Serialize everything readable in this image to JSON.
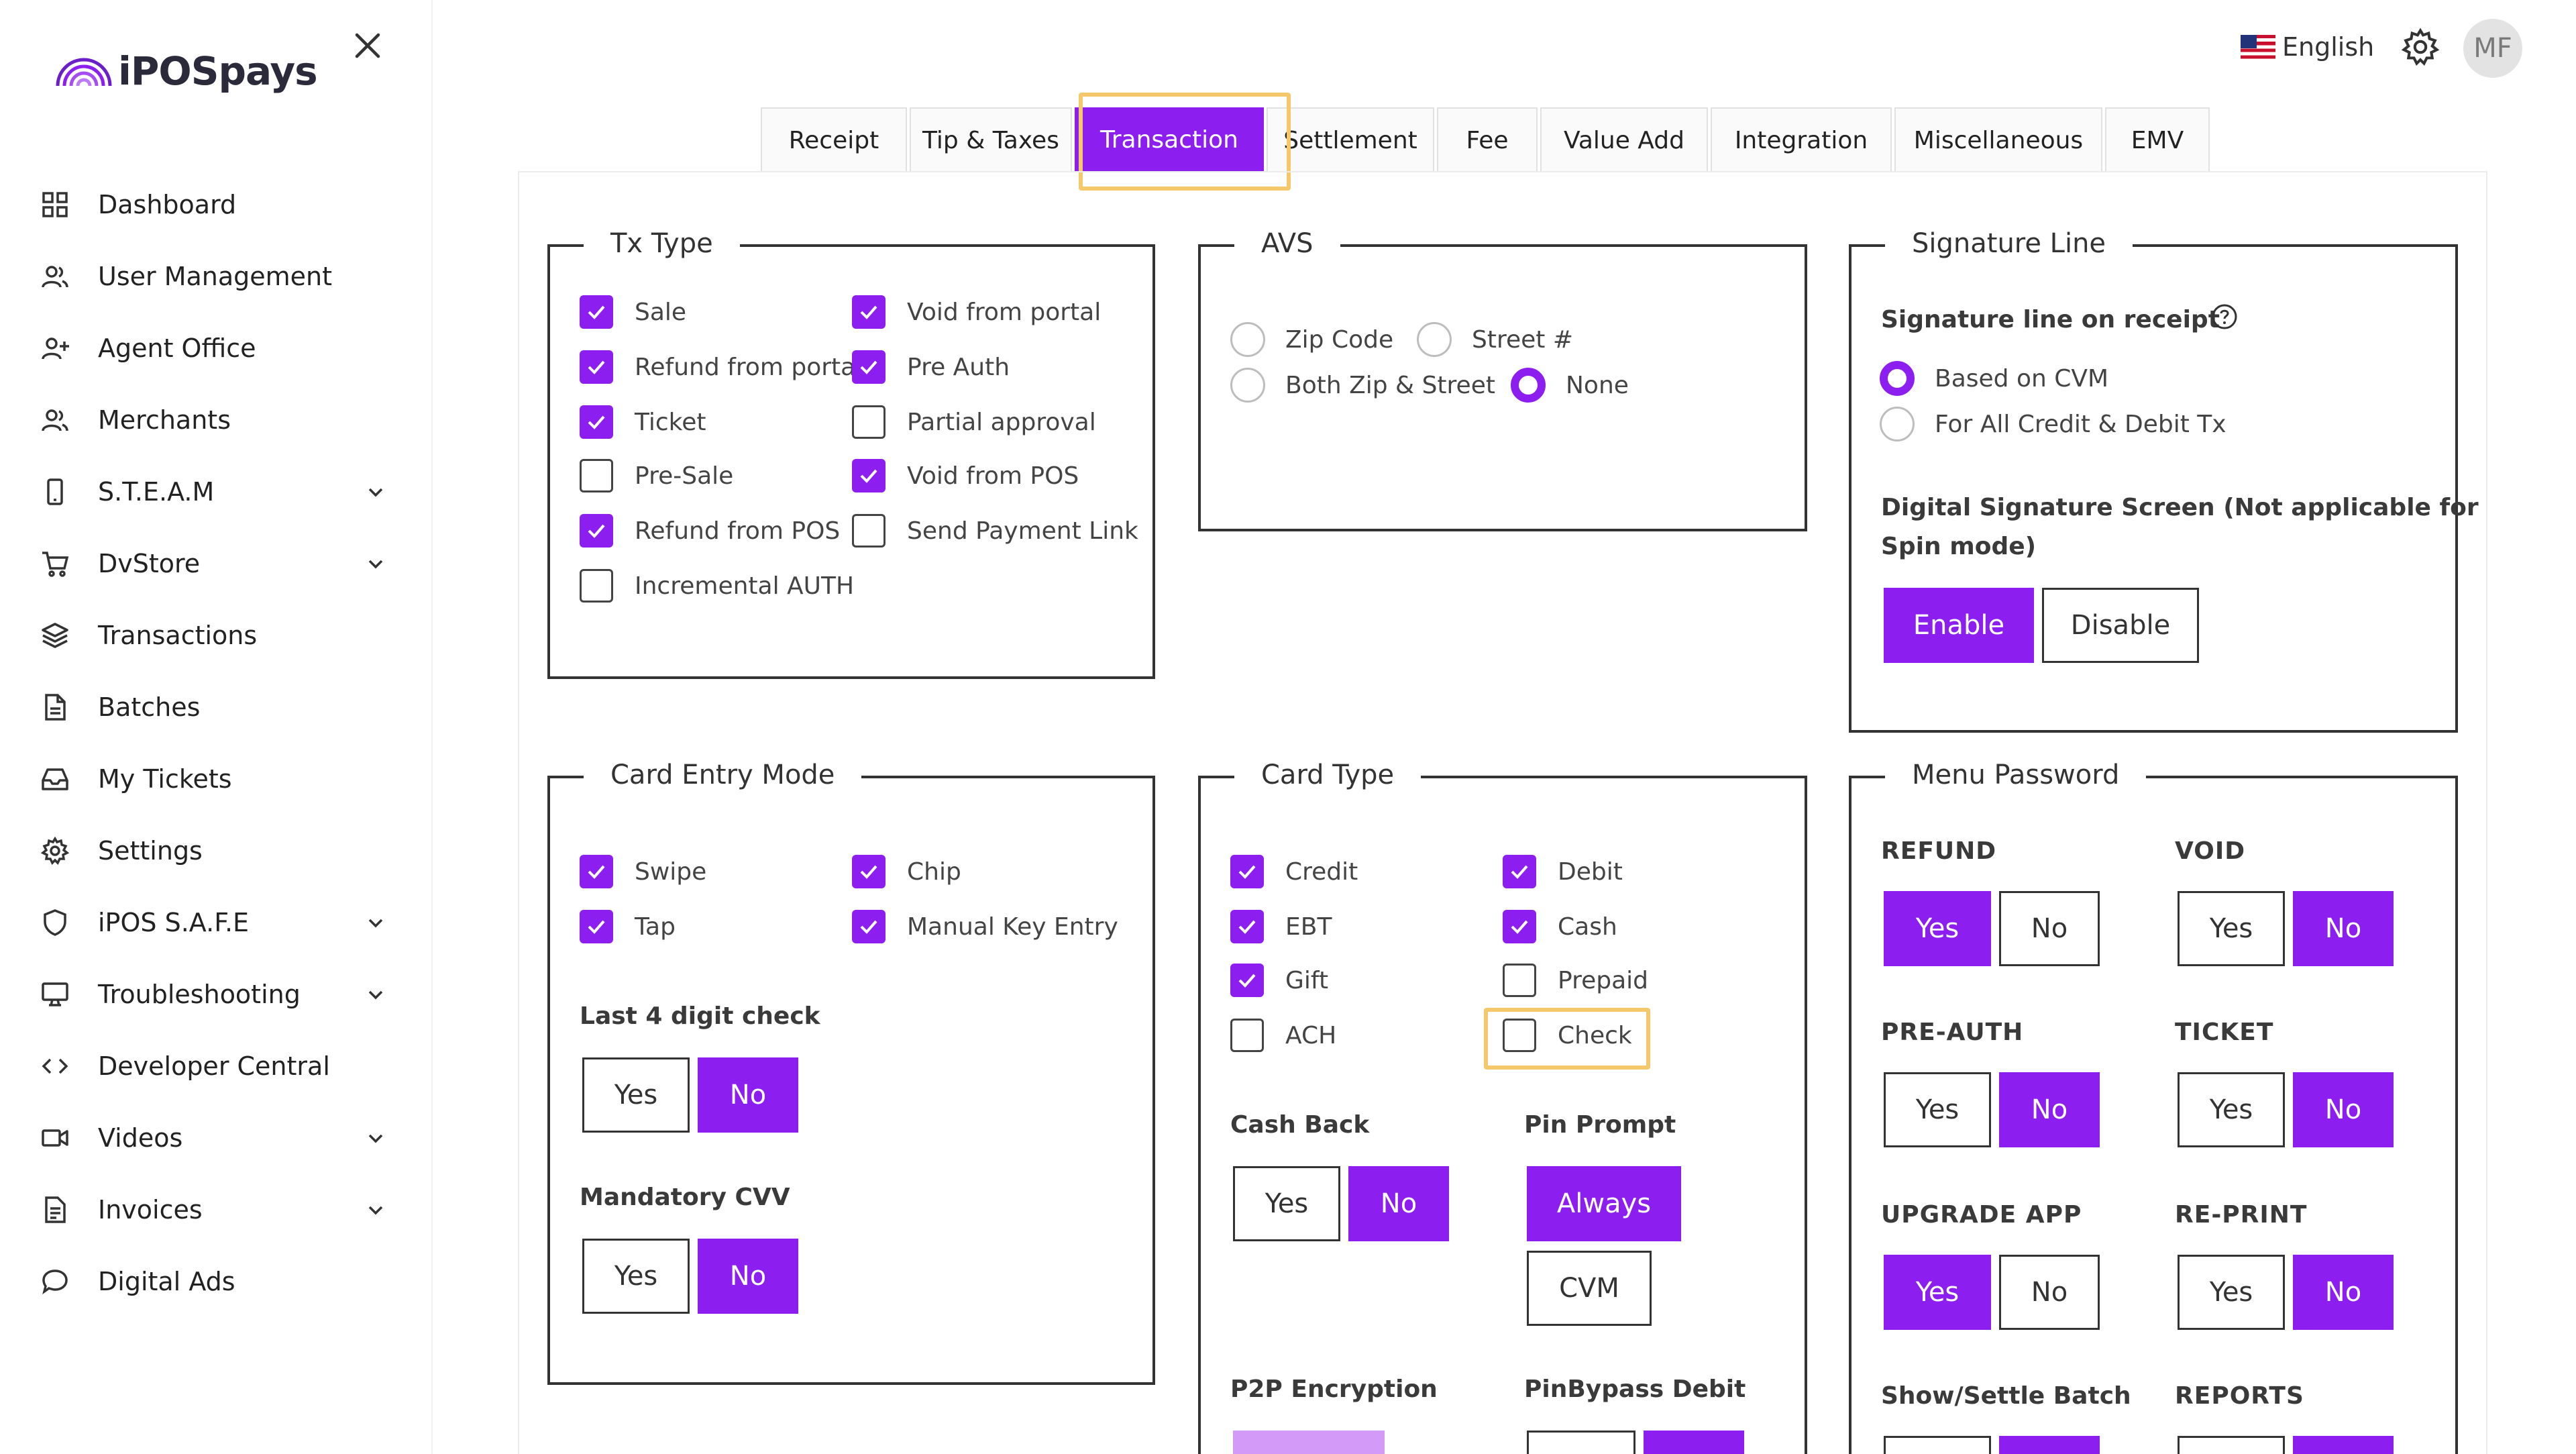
{
  "app": {
    "logo_text": "iPOSpays"
  },
  "topbar": {
    "language": "English",
    "avatar_initials": "MF"
  },
  "sidebar": {
    "items": [
      {
        "label": "Dashboard"
      },
      {
        "label": "User Management"
      },
      {
        "label": "Agent Office"
      },
      {
        "label": "Merchants"
      },
      {
        "label": "S.T.E.A.M"
      },
      {
        "label": "DvStore"
      },
      {
        "label": "Transactions"
      },
      {
        "label": "Batches"
      },
      {
        "label": "My Tickets"
      },
      {
        "label": "Settings"
      },
      {
        "label": "iPOS S.A.F.E"
      },
      {
        "label": "Troubleshooting"
      },
      {
        "label": "Developer Central"
      },
      {
        "label": "Videos"
      },
      {
        "label": "Invoices"
      },
      {
        "label": "Digital Ads"
      }
    ]
  },
  "tabs": [
    "Receipt",
    "Tip & Taxes",
    "Transaction",
    "Settlement",
    "Fee",
    "Value Add",
    "Integration",
    "Miscellaneous",
    "EMV"
  ],
  "tx_type": {
    "title": "Tx Type",
    "options": [
      {
        "label": "Sale",
        "checked": true
      },
      {
        "label": "Void from portal",
        "checked": true
      },
      {
        "label": "Refund from portal",
        "checked": true
      },
      {
        "label": "Pre Auth",
        "checked": true
      },
      {
        "label": "Ticket",
        "checked": true
      },
      {
        "label": "Partial approval",
        "checked": false
      },
      {
        "label": "Pre-Sale",
        "checked": false
      },
      {
        "label": "Void from POS",
        "checked": true
      },
      {
        "label": "Refund from POS",
        "checked": true
      },
      {
        "label": "Send Payment Link",
        "checked": false
      },
      {
        "label": "Incremental AUTH",
        "checked": false
      }
    ]
  },
  "avs": {
    "title": "AVS",
    "options": [
      {
        "label": "Zip Code",
        "selected": false
      },
      {
        "label": "Street #",
        "selected": false
      },
      {
        "label": "Both Zip & Street",
        "selected": false
      },
      {
        "label": "None",
        "selected": true
      }
    ]
  },
  "signature": {
    "title": "Signature Line",
    "line_label": "Signature line on receipt",
    "options": [
      {
        "label": "Based on CVM",
        "selected": true
      },
      {
        "label": "For All Credit & Debit Tx",
        "selected": false
      }
    ],
    "digital_label_1": "Digital Signature Screen (Not applicable for",
    "digital_label_2": "Spin mode)",
    "enable": "Enable",
    "disable": "Disable"
  },
  "card_entry": {
    "title": "Card Entry Mode",
    "options": [
      {
        "label": "Swipe",
        "checked": true
      },
      {
        "label": "Chip",
        "checked": true
      },
      {
        "label": "Tap",
        "checked": true
      },
      {
        "label": "Manual Key Entry",
        "checked": true
      }
    ],
    "last4_label": "Last 4 digit check",
    "cvv_label": "Mandatory CVV",
    "yes": "Yes",
    "no": "No"
  },
  "card_type": {
    "title": "Card Type",
    "options": [
      {
        "label": "Credit",
        "checked": true
      },
      {
        "label": "Debit",
        "checked": true
      },
      {
        "label": "EBT",
        "checked": true
      },
      {
        "label": "Cash",
        "checked": true
      },
      {
        "label": "Gift",
        "checked": true
      },
      {
        "label": "Prepaid",
        "checked": false
      },
      {
        "label": "ACH",
        "checked": false
      },
      {
        "label": "Check",
        "checked": false
      }
    ],
    "cash_back_label": "Cash Back",
    "pin_prompt_label": "Pin Prompt",
    "always": "Always",
    "cvm": "CVM",
    "p2p_label": "P2P Encryption",
    "pinbypass_label": "PinBypass Debit",
    "yes": "Yes",
    "no": "No"
  },
  "menu_password": {
    "title": "Menu Password",
    "groups": [
      {
        "label": "REFUND",
        "value": "Yes"
      },
      {
        "label": "VOID",
        "value": "No"
      },
      {
        "label": "PRE-AUTH",
        "value": "No"
      },
      {
        "label": "TICKET",
        "value": "No"
      },
      {
        "label": "UPGRADE APP",
        "value": "Yes"
      },
      {
        "label": "RE-PRINT",
        "value": "No"
      },
      {
        "label": "Show/Settle Batch",
        "value": "No"
      },
      {
        "label": "REPORTS",
        "value": "No"
      }
    ],
    "yes": "Yes",
    "no": "No"
  },
  "colors": {
    "accent": "#8c1ff0",
    "highlight": "#f5c96b"
  }
}
